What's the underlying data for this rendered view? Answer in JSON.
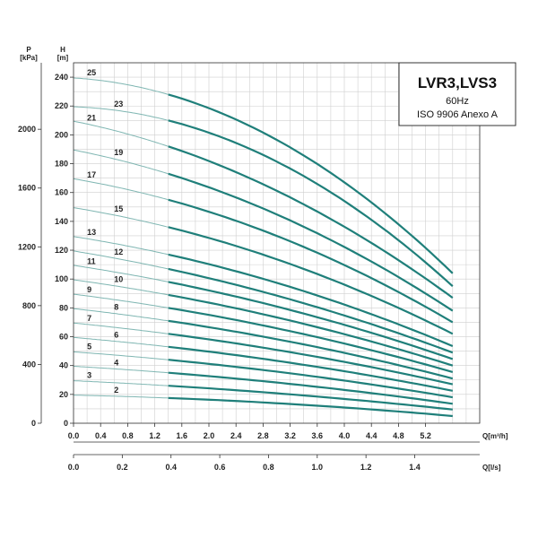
{
  "chart_data": {
    "type": "line",
    "title": "LVR3,LVS3",
    "subtitle_1": "60Hz",
    "subtitle_2": "ISO 9906 Anexo A",
    "y_head_label_line1": "H",
    "y_head_label_line2": "[m]",
    "y_pressure_label_line1": "P",
    "y_pressure_label_line2": "[kPa]",
    "x_flow_m3h_label": "Q[m³/h]",
    "x_flow_ls_label": "Q[l/s]",
    "head_ylim": [
      0,
      250
    ],
    "head_ticks": [
      "0",
      "20",
      "40",
      "60",
      "80",
      "100",
      "120",
      "140",
      "160",
      "180",
      "200",
      "220",
      "240"
    ],
    "pressure_ticks": [
      "0",
      "400",
      "800",
      "1200",
      "1600",
      "2000"
    ],
    "flow_m3h_xlim": [
      0,
      6
    ],
    "flow_m3h_ticks": [
      "0.0",
      "0.4",
      "0.8",
      "1.2",
      "1.6",
      "2.0",
      "2.4",
      "2.8",
      "3.2",
      "3.6",
      "4.0",
      "4.4",
      "4.8",
      "5.2"
    ],
    "flow_ls_ticks": [
      "0.0",
      "0.2",
      "0.4",
      "0.6",
      "0.8",
      "1.0",
      "1.2",
      "1.4"
    ],
    "grid": true,
    "legend_position": "top-right",
    "operating_range_m3h": [
      1.4,
      5.6
    ],
    "series": [
      {
        "name": "2",
        "label_x": 0.6,
        "x": [
          0.0,
          1.4,
          5.6
        ],
        "y": [
          19.5,
          17.5,
          5.0
        ]
      },
      {
        "name": "3",
        "label_x": 0.2,
        "x": [
          0.0,
          1.4,
          5.6
        ],
        "y": [
          29.5,
          26,
          9.5
        ]
      },
      {
        "name": "4",
        "label_x": 0.6,
        "x": [
          0.0,
          1.4,
          5.6
        ],
        "y": [
          39.5,
          35,
          13.5
        ]
      },
      {
        "name": "5",
        "label_x": 0.2,
        "x": [
          0.0,
          1.4,
          5.6
        ],
        "y": [
          49.5,
          44,
          18
        ]
      },
      {
        "name": "6",
        "label_x": 0.6,
        "x": [
          0.0,
          1.4,
          5.6
        ],
        "y": [
          59.5,
          53,
          22.5
        ]
      },
      {
        "name": "7",
        "label_x": 0.2,
        "x": [
          0.0,
          1.4,
          5.6
        ],
        "y": [
          69.5,
          62,
          27
        ]
      },
      {
        "name": "8",
        "label_x": 0.6,
        "x": [
          0.0,
          1.4,
          5.6
        ],
        "y": [
          79.5,
          71,
          31
        ]
      },
      {
        "name": "9",
        "label_x": 0.2,
        "x": [
          0.0,
          1.4,
          5.6
        ],
        "y": [
          89.5,
          80,
          35.5
        ]
      },
      {
        "name": "10",
        "label_x": 0.6,
        "x": [
          0.0,
          1.4,
          5.6
        ],
        "y": [
          99.5,
          89,
          40
        ]
      },
      {
        "name": "11",
        "label_x": 0.2,
        "x": [
          0.0,
          1.4,
          5.6
        ],
        "y": [
          109.5,
          98,
          44.5
        ]
      },
      {
        "name": "12",
        "label_x": 0.6,
        "x": [
          0.0,
          1.4,
          5.6
        ],
        "y": [
          119.5,
          107,
          49
        ]
      },
      {
        "name": "13",
        "label_x": 0.2,
        "x": [
          0.0,
          1.4,
          5.6
        ],
        "y": [
          129.5,
          117,
          53.5
        ]
      },
      {
        "name": "15",
        "label_x": 0.6,
        "x": [
          0.0,
          1.4,
          5.6
        ],
        "y": [
          149.5,
          136,
          62
        ]
      },
      {
        "name": "17",
        "label_x": 0.2,
        "x": [
          0.0,
          1.4,
          5.6
        ],
        "y": [
          169.5,
          155,
          70
        ]
      },
      {
        "name": "19",
        "label_x": 0.6,
        "x": [
          0.0,
          1.4,
          5.6
        ],
        "y": [
          189.5,
          173,
          78
        ]
      },
      {
        "name": "21",
        "label_x": 0.2,
        "x": [
          0.0,
          1.4,
          5.6
        ],
        "y": [
          209.5,
          192,
          87
        ]
      },
      {
        "name": "23",
        "label_x": 0.6,
        "x": [
          0.0,
          1.4,
          5.6
        ],
        "y": [
          219.5,
          210,
          95
        ]
      },
      {
        "name": "25",
        "label_x": 0.2,
        "x": [
          0.0,
          1.4,
          5.6
        ],
        "y": [
          239.5,
          228,
          104
        ]
      }
    ],
    "colors": {
      "curve_operating": "#1f7f7a",
      "curve_extension": "#7fb6b2",
      "grid": "#cfcfcf",
      "axis": "#333333"
    }
  }
}
